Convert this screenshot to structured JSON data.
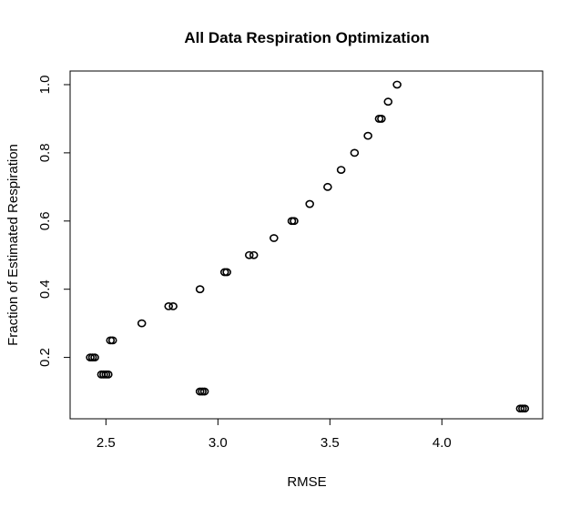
{
  "chart_data": {
    "type": "scatter",
    "title": "All Data Respiration Optimization",
    "xlabel": "RMSE",
    "ylabel": "Fraction of Estimated Respiration",
    "xlim": [
      2.34,
      4.45
    ],
    "ylim": [
      0.02,
      1.04
    ],
    "xticks": [
      2.5,
      3.0,
      3.5,
      4.0
    ],
    "xtick_labels": [
      "2.5",
      "3.0",
      "3.5",
      "4.0"
    ],
    "yticks": [
      0.2,
      0.4,
      0.6,
      0.8,
      1.0
    ],
    "ytick_labels": [
      "0.2",
      "0.4",
      "0.6",
      "0.8",
      "1.0"
    ],
    "grid": false,
    "marker": "open-circle",
    "points": [
      {
        "x": 2.43,
        "y": 0.2
      },
      {
        "x": 2.44,
        "y": 0.2
      },
      {
        "x": 2.45,
        "y": 0.2
      },
      {
        "x": 2.48,
        "y": 0.15
      },
      {
        "x": 2.49,
        "y": 0.15
      },
      {
        "x": 2.5,
        "y": 0.15
      },
      {
        "x": 2.51,
        "y": 0.15
      },
      {
        "x": 2.52,
        "y": 0.25
      },
      {
        "x": 2.53,
        "y": 0.25
      },
      {
        "x": 2.66,
        "y": 0.3
      },
      {
        "x": 2.78,
        "y": 0.35
      },
      {
        "x": 2.8,
        "y": 0.35
      },
      {
        "x": 2.92,
        "y": 0.4
      },
      {
        "x": 2.92,
        "y": 0.1
      },
      {
        "x": 2.93,
        "y": 0.1
      },
      {
        "x": 2.94,
        "y": 0.1
      },
      {
        "x": 3.03,
        "y": 0.45
      },
      {
        "x": 3.04,
        "y": 0.45
      },
      {
        "x": 3.14,
        "y": 0.5
      },
      {
        "x": 3.16,
        "y": 0.5
      },
      {
        "x": 3.25,
        "y": 0.55
      },
      {
        "x": 3.33,
        "y": 0.6
      },
      {
        "x": 3.34,
        "y": 0.6
      },
      {
        "x": 3.41,
        "y": 0.65
      },
      {
        "x": 3.49,
        "y": 0.7
      },
      {
        "x": 3.55,
        "y": 0.75
      },
      {
        "x": 3.61,
        "y": 0.8
      },
      {
        "x": 3.67,
        "y": 0.85
      },
      {
        "x": 3.72,
        "y": 0.9
      },
      {
        "x": 3.73,
        "y": 0.9
      },
      {
        "x": 3.76,
        "y": 0.95
      },
      {
        "x": 3.8,
        "y": 1.0
      },
      {
        "x": 4.35,
        "y": 0.05
      },
      {
        "x": 4.36,
        "y": 0.05
      },
      {
        "x": 4.37,
        "y": 0.05
      }
    ]
  }
}
